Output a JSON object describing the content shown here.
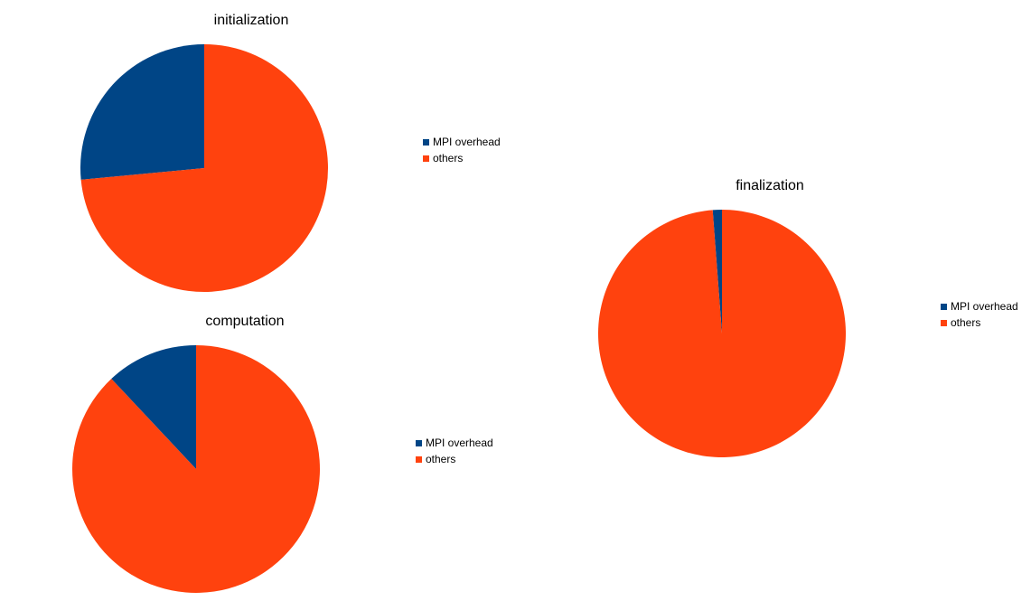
{
  "colors": {
    "mpi_overhead": "#004586",
    "others": "#ff420e"
  },
  "chart_data": [
    {
      "id": "initialization",
      "type": "pie",
      "title": "initialization",
      "categories": [
        "MPI overhead",
        "others"
      ],
      "values": [
        26.5,
        73.5
      ],
      "unit": "%",
      "legend": "right"
    },
    {
      "id": "computation",
      "type": "pie",
      "title": "computation",
      "categories": [
        "MPI overhead",
        "others"
      ],
      "values": [
        12,
        88
      ],
      "unit": "%",
      "legend": "right"
    },
    {
      "id": "finalization",
      "type": "pie",
      "title": "finalization",
      "categories": [
        "MPI overhead",
        "others"
      ],
      "values": [
        1.2,
        98.8
      ],
      "unit": "%",
      "legend": "right"
    }
  ]
}
